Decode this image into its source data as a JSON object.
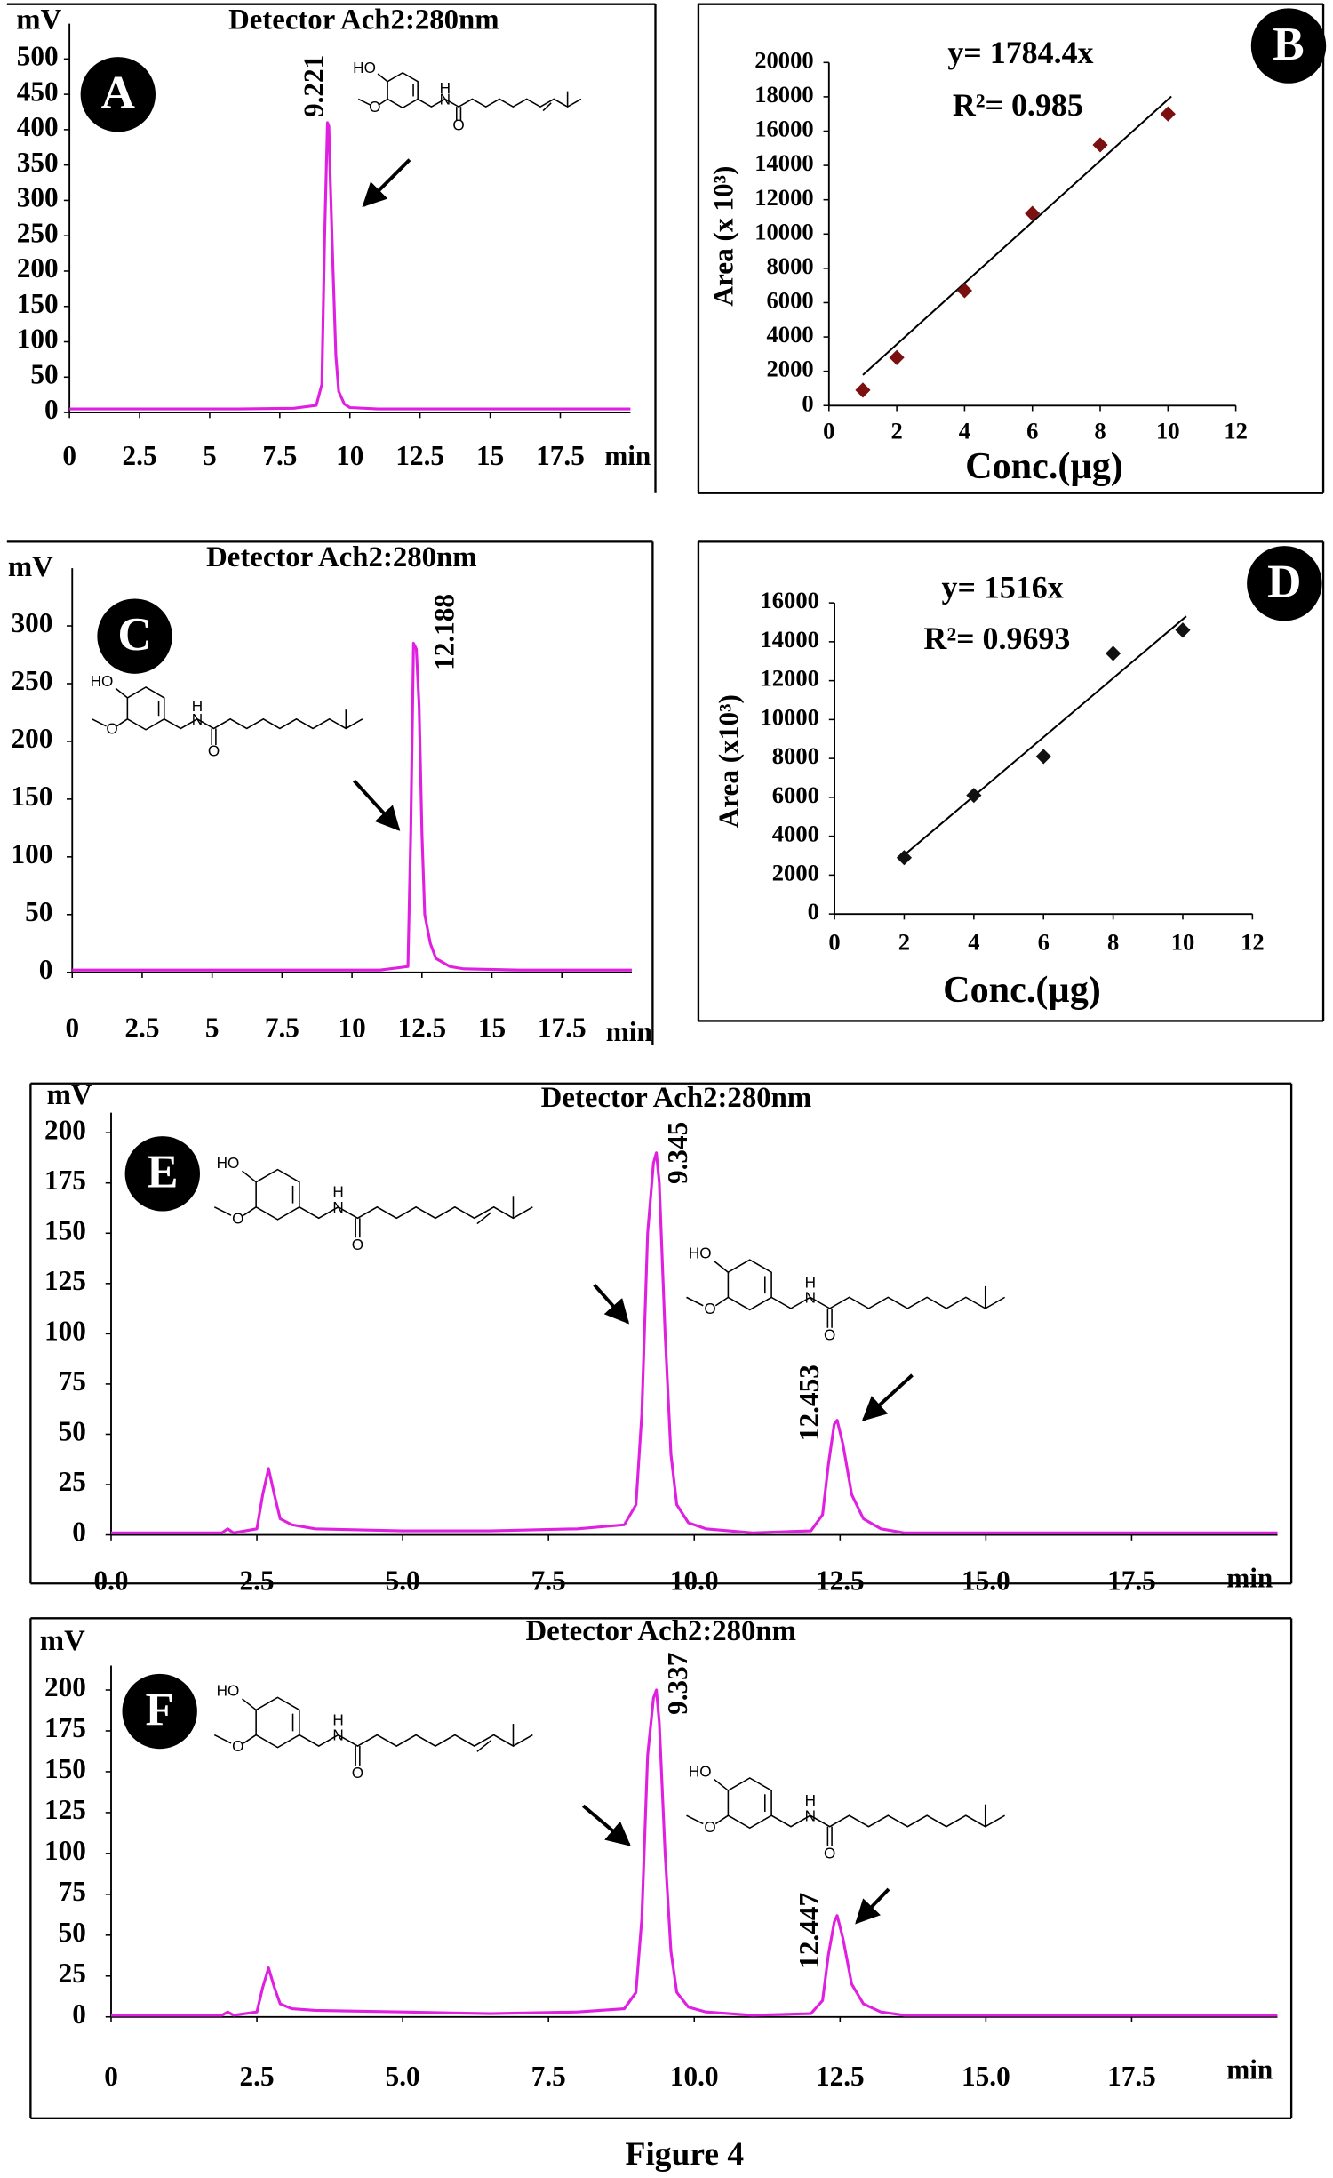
{
  "caption": "Figure 4",
  "structure_text": {
    "hydroxy": "HO",
    "methoxy": "O",
    "amine": "N",
    "hydrogen": "H",
    "carbonyl": "O"
  },
  "chart_data": [
    {
      "type": "line",
      "panel": "A",
      "title": "Detector Ach2:280nm",
      "ylabel": "mV",
      "xlabel": "min",
      "color": "#e020e0",
      "x": [
        0,
        2,
        4,
        6,
        8,
        8.8,
        9.0,
        9.1,
        9.2,
        9.25,
        9.3,
        9.4,
        9.5,
        9.6,
        9.8,
        10,
        11,
        13,
        15,
        17,
        19,
        20
      ],
      "values": [
        5,
        5,
        5,
        5,
        6,
        10,
        40,
        250,
        410,
        405,
        330,
        200,
        80,
        30,
        12,
        7,
        5,
        5,
        5,
        5,
        5,
        5
      ],
      "xlim": [
        0,
        20
      ],
      "xticks": [
        0,
        2.5,
        5,
        7.5,
        10,
        12.5,
        15,
        17.5
      ],
      "ylim": [
        0,
        550
      ],
      "yticks": [
        0,
        50,
        100,
        150,
        200,
        250,
        300,
        350,
        400,
        450,
        500
      ],
      "peak_labels": [
        "9.221"
      ]
    },
    {
      "type": "scatter",
      "panel": "B",
      "xlabel": "Conc.(µg)",
      "ylabel": "Area (x 10³)",
      "color": "#7b1010",
      "equation": "y= 1784.4x",
      "r_squared": "R²=  0.985",
      "x": [
        1,
        2,
        4,
        6,
        8,
        10
      ],
      "values": [
        900,
        2800,
        6700,
        11200,
        15200,
        17000
      ],
      "fit_slope": 1784.4,
      "fit_xrange": [
        1,
        10.1
      ],
      "xlim": [
        0,
        12
      ],
      "xticks": [
        0,
        2,
        4,
        6,
        8,
        10,
        12
      ],
      "ylim": [
        0,
        20000
      ],
      "yticks": [
        0,
        2000,
        4000,
        6000,
        8000,
        10000,
        12000,
        14000,
        16000,
        18000,
        20000
      ]
    },
    {
      "type": "line",
      "panel": "C",
      "title": "Detector Ach2:280nm",
      "ylabel": "mV",
      "xlabel": "min",
      "color": "#e020e0",
      "x": [
        0,
        3,
        6,
        9,
        11,
        12,
        12.1,
        12.2,
        12.3,
        12.4,
        12.5,
        12.6,
        12.8,
        13,
        13.5,
        14,
        16,
        18,
        20
      ],
      "values": [
        2,
        2,
        2,
        2,
        2,
        5,
        120,
        285,
        280,
        230,
        120,
        50,
        25,
        12,
        5,
        3,
        2,
        2,
        2
      ],
      "xlim": [
        0,
        20
      ],
      "xticks": [
        0,
        2.5,
        5,
        7.5,
        10,
        12.5,
        15,
        17.5
      ],
      "ylim": [
        0,
        350
      ],
      "yticks": [
        0,
        50,
        100,
        150,
        200,
        250,
        300
      ],
      "peak_labels": [
        "12.188"
      ]
    },
    {
      "type": "scatter",
      "panel": "D",
      "xlabel": "Conc.(µg)",
      "ylabel": "Area (x10³)",
      "color": "#111111",
      "equation": "y= 1516x",
      "r_squared": "R²= 0.9693",
      "x": [
        2,
        4,
        6,
        8,
        10
      ],
      "values": [
        2900,
        6100,
        8100,
        13400,
        14600
      ],
      "fit_slope": 1516,
      "fit_xrange": [
        2,
        10.1
      ],
      "xlim": [
        0,
        12
      ],
      "xticks": [
        0,
        2,
        4,
        6,
        8,
        10,
        12
      ],
      "ylim": [
        0,
        16000
      ],
      "yticks": [
        0,
        2000,
        4000,
        6000,
        8000,
        10000,
        12000,
        14000,
        16000
      ]
    },
    {
      "type": "line",
      "panel": "E",
      "title": "Detector Ach2:280nm",
      "ylabel": "mV",
      "xlabel": "min",
      "color": "#e020e0",
      "x": [
        0,
        1,
        1.9,
        2.0,
        2.1,
        2.5,
        2.6,
        2.7,
        2.8,
        2.9,
        3.1,
        3.5,
        5,
        6.5,
        8,
        8.8,
        9.0,
        9.1,
        9.2,
        9.3,
        9.35,
        9.4,
        9.5,
        9.6,
        9.7,
        9.9,
        10.2,
        11,
        12,
        12.2,
        12.3,
        12.4,
        12.45,
        12.55,
        12.7,
        12.9,
        13.2,
        13.6,
        15,
        17.5,
        20
      ],
      "values": [
        1,
        1,
        1,
        3,
        1,
        3,
        20,
        33,
        20,
        8,
        5,
        3,
        2,
        2,
        3,
        5,
        15,
        60,
        150,
        185,
        190,
        175,
        100,
        40,
        15,
        6,
        3,
        1,
        2,
        10,
        35,
        55,
        57,
        45,
        20,
        8,
        3,
        1,
        1,
        1,
        1
      ],
      "xlim": [
        0,
        20
      ],
      "xticks": [
        {
          "value": 0,
          "label": "0.0"
        },
        2.5,
        {
          "value": 5,
          "label": "5.0"
        },
        7.5,
        {
          "value": 10,
          "label": "10.0"
        },
        12.5,
        {
          "value": 15,
          "label": "15.0"
        },
        17.5
      ],
      "ylim": [
        0,
        210
      ],
      "yticks": [
        0,
        25,
        50,
        75,
        100,
        125,
        150,
        175,
        200
      ],
      "peak_labels": [
        "9.345",
        "12.453"
      ]
    },
    {
      "type": "line",
      "panel": "F",
      "title": "Detector Ach2:280nm",
      "ylabel": "mV",
      "xlabel": "min",
      "color": "#e020e0",
      "x": [
        0,
        1,
        1.9,
        2.0,
        2.1,
        2.5,
        2.6,
        2.7,
        2.8,
        2.9,
        3.1,
        3.5,
        5,
        6.5,
        8,
        8.8,
        9.0,
        9.1,
        9.2,
        9.3,
        9.35,
        9.4,
        9.5,
        9.6,
        9.7,
        9.9,
        10.2,
        11,
        12,
        12.2,
        12.3,
        12.4,
        12.45,
        12.55,
        12.7,
        12.9,
        13.2,
        13.6,
        15,
        17.5,
        20
      ],
      "values": [
        1,
        1,
        1,
        3,
        1,
        3,
        18,
        30,
        18,
        8,
        5,
        4,
        3,
        2,
        3,
        5,
        15,
        60,
        160,
        195,
        200,
        180,
        100,
        40,
        15,
        6,
        3,
        1,
        2,
        10,
        38,
        58,
        62,
        48,
        20,
        8,
        3,
        1,
        1,
        1,
        1
      ],
      "xlim": [
        0,
        20
      ],
      "xticks": [
        0,
        2.5,
        {
          "value": 5,
          "label": "5.0"
        },
        {
          "value": 7.5,
          "label": "7.5"
        },
        {
          "value": 10,
          "label": "10.0"
        },
        12.5,
        {
          "value": 15,
          "label": "15.0"
        },
        17.5
      ],
      "ylim": [
        0,
        215
      ],
      "yticks": [
        0,
        25,
        50,
        75,
        100,
        125,
        150,
        175,
        200
      ],
      "peak_labels": [
        "9.337",
        "12.447"
      ]
    }
  ]
}
